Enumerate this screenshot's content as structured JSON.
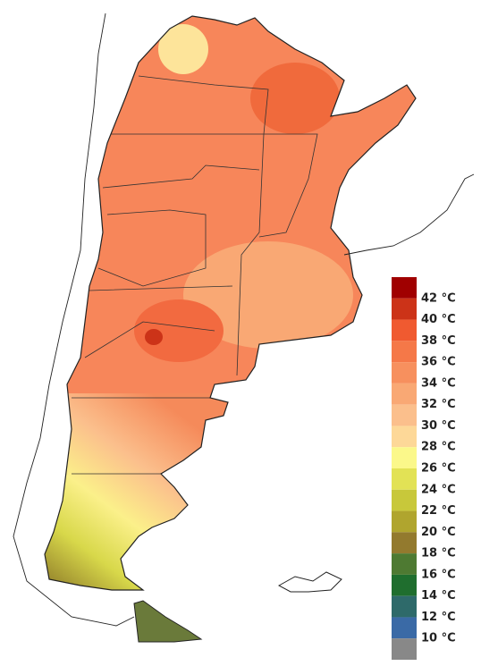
{
  "legend": {
    "items": [
      {
        "color": "#a00000"
      },
      {
        "label": "42 °C",
        "color": "#cc3318"
      },
      {
        "label": "40 °C",
        "color": "#f05a30"
      },
      {
        "label": "38 °C",
        "color": "#f57848"
      },
      {
        "label": "36 °C",
        "color": "#f7905e"
      },
      {
        "label": "34 °C",
        "color": "#f9a874"
      },
      {
        "label": "32 °C",
        "color": "#fbbf8c"
      },
      {
        "label": "30 °C",
        "color": "#fdd898"
      },
      {
        "label": "28 °C",
        "color": "#fbf88a"
      },
      {
        "label": "26 °C",
        "color": "#e2e255"
      },
      {
        "label": "24 °C",
        "color": "#c8c83a"
      },
      {
        "label": "22 °C",
        "color": "#b0a52e"
      },
      {
        "label": "20 °C",
        "color": "#937a2e"
      },
      {
        "label": "18 °C",
        "color": "#4e7a32"
      },
      {
        "label": "16 °C",
        "color": "#1f6e2e"
      },
      {
        "label": "14 °C",
        "color": "#2e6a6a"
      },
      {
        "label": "12 °C",
        "color": "#3a6aa6"
      },
      {
        "label": "10 °C",
        "color": "#888888"
      }
    ]
  }
}
